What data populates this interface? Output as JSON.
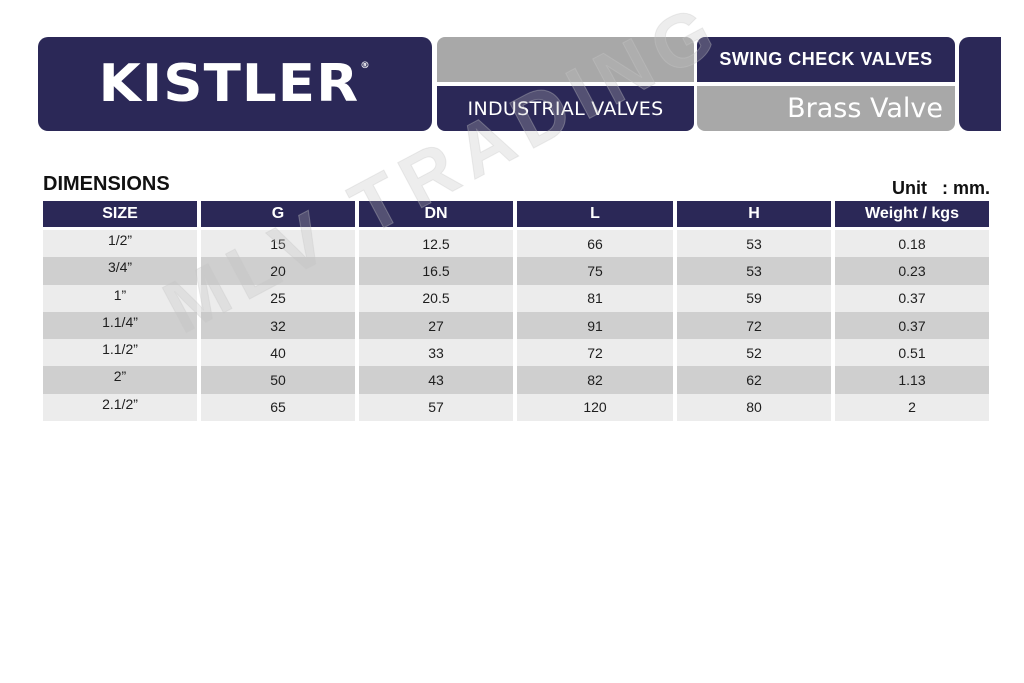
{
  "header": {
    "brand": "KISTLER",
    "brand_mark": "®",
    "category": "INDUSTRIAL VALVES",
    "product_line": "SWING CHECK VALVES",
    "material": "Brass Valve"
  },
  "section": {
    "title": "DIMENSIONS",
    "unit": "Unit   : mm."
  },
  "watermark": "MLV TRADING",
  "table": {
    "columns": [
      "SIZE",
      "G",
      "DN",
      "L",
      "H",
      "Weight / kgs"
    ],
    "rows": [
      [
        "1/2”",
        "15",
        "12.5",
        "66",
        "53",
        "0.18"
      ],
      [
        "3/4”",
        "20",
        "16.5",
        "75",
        "53",
        "0.23"
      ],
      [
        "1”",
        "25",
        "20.5",
        "81",
        "59",
        "0.37"
      ],
      [
        "1.1/4”",
        "32",
        "27",
        "91",
        "72",
        "0.37"
      ],
      [
        "1.1/2”",
        "40",
        "33",
        "72",
        "52",
        "0.51"
      ],
      [
        "2”",
        "50",
        "43",
        "82",
        "62",
        "1.13"
      ],
      [
        "2.1/2”",
        "65",
        "57",
        "120",
        "80",
        "2"
      ]
    ]
  },
  "colors": {
    "navy": "#2b2857",
    "grey": "#a8a8a8",
    "row_light": "#ececec",
    "row_dark": "#cfcfcf"
  }
}
